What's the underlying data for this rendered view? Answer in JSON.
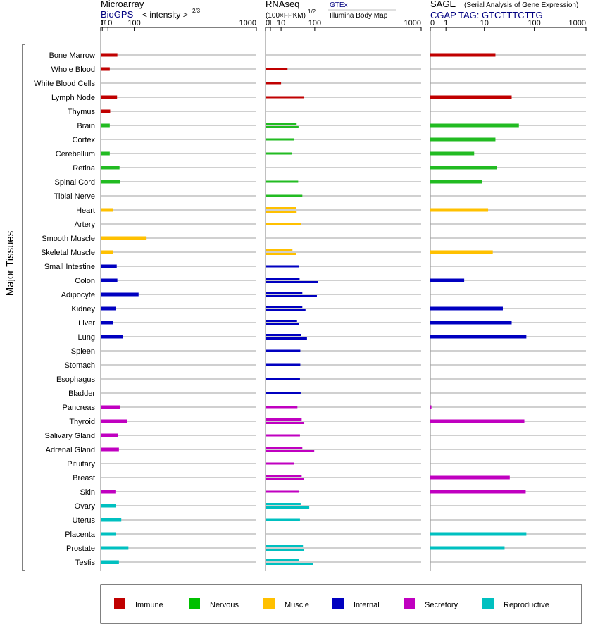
{
  "chart_data": [
    {
      "type": "bar",
      "title": "Microarray",
      "subtitle": "BioGPS",
      "scale_label": "< intensity >",
      "scale_exponent": "2/3",
      "scale": "power-2/3",
      "ticks": [
        "0",
        "1",
        "10",
        "100",
        "1000"
      ],
      "xlim": [
        0,
        1000
      ],
      "series": [
        {
          "tissue": "Bone Marrow",
          "group": "Immune",
          "values": [
            35
          ]
        },
        {
          "tissue": "Whole Blood",
          "group": "Immune",
          "values": [
            14
          ]
        },
        {
          "tissue": "White Blood Cells",
          "group": "Immune",
          "values": []
        },
        {
          "tissue": "Lymph Node",
          "group": "Immune",
          "values": [
            34
          ]
        },
        {
          "tissue": "Thymus",
          "group": "Immune",
          "values": [
            15
          ]
        },
        {
          "tissue": "Brain",
          "group": "Nervous",
          "values": [
            14
          ]
        },
        {
          "tissue": "Cortex",
          "group": "Nervous",
          "values": []
        },
        {
          "tissue": "Cerebellum",
          "group": "Nervous",
          "values": [
            14
          ]
        },
        {
          "tissue": "Retina",
          "group": "Nervous",
          "values": [
            42
          ]
        },
        {
          "tissue": "Spinal Cord",
          "group": "Nervous",
          "values": [
            45
          ]
        },
        {
          "tissue": "Tibial Nerve",
          "group": "Nervous",
          "values": []
        },
        {
          "tissue": "Heart",
          "group": "Muscle",
          "values": [
            22
          ]
        },
        {
          "tissue": "Artery",
          "group": "Muscle",
          "values": []
        },
        {
          "tissue": "Smooth Muscle",
          "group": "Muscle",
          "values": [
            160
          ]
        },
        {
          "tissue": "Skeletal Muscle",
          "group": "Muscle",
          "values": [
            23
          ]
        },
        {
          "tissue": "Small Intestine",
          "group": "Internal",
          "values": [
            33
          ]
        },
        {
          "tissue": "Colon",
          "group": "Internal",
          "values": [
            35
          ]
        },
        {
          "tissue": "Adipocyte",
          "group": "Internal",
          "values": [
            120
          ]
        },
        {
          "tissue": "Kidney",
          "group": "Internal",
          "values": [
            30
          ]
        },
        {
          "tissue": "Liver",
          "group": "Internal",
          "values": [
            23
          ]
        },
        {
          "tissue": "Lung",
          "group": "Internal",
          "values": [
            55
          ]
        },
        {
          "tissue": "Spleen",
          "group": "Internal",
          "values": []
        },
        {
          "tissue": "Stomach",
          "group": "Internal",
          "values": []
        },
        {
          "tissue": "Esophagus",
          "group": "Internal",
          "values": []
        },
        {
          "tissue": "Bladder",
          "group": "Internal",
          "values": []
        },
        {
          "tissue": "Pancreas",
          "group": "Secretory",
          "values": [
            45
          ]
        },
        {
          "tissue": "Thyroid",
          "group": "Secretory",
          "values": [
            70
          ]
        },
        {
          "tissue": "Salivary Gland",
          "group": "Secretory",
          "values": [
            37
          ]
        },
        {
          "tissue": "Adrenal Gland",
          "group": "Secretory",
          "values": [
            40
          ]
        },
        {
          "tissue": "Pituitary",
          "group": "Secretory",
          "values": []
        },
        {
          "tissue": "Breast",
          "group": "Secretory",
          "values": []
        },
        {
          "tissue": "Skin",
          "group": "Secretory",
          "values": [
            29
          ]
        },
        {
          "tissue": "Ovary",
          "group": "Reproductive",
          "values": [
            31
          ]
        },
        {
          "tissue": "Uterus",
          "group": "Reproductive",
          "values": [
            48
          ]
        },
        {
          "tissue": "Placenta",
          "group": "Reproductive",
          "values": [
            31
          ]
        },
        {
          "tissue": "Prostate",
          "group": "Reproductive",
          "values": [
            75
          ]
        },
        {
          "tissue": "Testis",
          "group": "Reproductive",
          "values": [
            40
          ]
        }
      ]
    },
    {
      "type": "bar",
      "title": "RNAseq",
      "scale_label": "(100×FPKM)",
      "scale_exponent": "1/2",
      "source_top": "GTEx",
      "source_bottom": "Illumina Body Map",
      "scale": "power-1/2",
      "ticks": [
        "0",
        "1",
        "10",
        "100",
        "1000"
      ],
      "xlim": [
        0,
        1000
      ],
      "series": [
        {
          "tissue": "Bone Marrow",
          "group": "Immune",
          "values": []
        },
        {
          "tissue": "Whole Blood",
          "group": "Immune",
          "values": [
            20
          ]
        },
        {
          "tissue": "White Blood Cells",
          "group": "Immune",
          "values": [
            10
          ]
        },
        {
          "tissue": "Lymph Node",
          "group": "Immune",
          "values": [
            60
          ]
        },
        {
          "tissue": "Thymus",
          "group": "Immune",
          "values": []
        },
        {
          "tissue": "Brain",
          "group": "Nervous",
          "values": [
            40,
            45
          ]
        },
        {
          "tissue": "Cortex",
          "group": "Nervous",
          "values": [
            33
          ]
        },
        {
          "tissue": "Cerebellum",
          "group": "Nervous",
          "values": [
            28
          ]
        },
        {
          "tissue": "Retina",
          "group": "Nervous",
          "values": []
        },
        {
          "tissue": "Spinal Cord",
          "group": "Nervous",
          "values": [
            44
          ]
        },
        {
          "tissue": "Tibial Nerve",
          "group": "Nervous",
          "values": [
            56
          ]
        },
        {
          "tissue": "Heart",
          "group": "Muscle",
          "values": [
            38,
            40
          ]
        },
        {
          "tissue": "Artery",
          "group": "Muscle",
          "values": [
            52
          ]
        },
        {
          "tissue": "Smooth Muscle",
          "group": "Muscle",
          "values": []
        },
        {
          "tissue": "Skeletal Muscle",
          "group": "Muscle",
          "values": [
            30,
            39
          ]
        },
        {
          "tissue": "Small Intestine",
          "group": "Internal",
          "values": [
            47
          ]
        },
        {
          "tissue": "Colon",
          "group": "Internal",
          "values": [
            48,
            115
          ]
        },
        {
          "tissue": "Adipocyte",
          "group": "Internal",
          "values": [
            56,
            109
          ]
        },
        {
          "tissue": "Kidney",
          "group": "Internal",
          "values": [
            56,
            66
          ]
        },
        {
          "tissue": "Liver",
          "group": "Internal",
          "values": [
            41,
            47
          ]
        },
        {
          "tissue": "Lung",
          "group": "Internal",
          "values": [
            53,
            71
          ]
        },
        {
          "tissue": "Spleen",
          "group": "Internal",
          "values": [
            50
          ]
        },
        {
          "tissue": "Stomach",
          "group": "Internal",
          "values": [
            50
          ]
        },
        {
          "tissue": "Esophagus",
          "group": "Internal",
          "values": [
            49
          ]
        },
        {
          "tissue": "Bladder",
          "group": "Internal",
          "values": [
            51
          ]
        },
        {
          "tissue": "Pancreas",
          "group": "Secretory",
          "values": [
            42
          ]
        },
        {
          "tissue": "Thyroid",
          "group": "Secretory",
          "values": [
            54,
            62
          ]
        },
        {
          "tissue": "Salivary Gland",
          "group": "Secretory",
          "values": [
            49
          ]
        },
        {
          "tissue": "Adrenal Gland",
          "group": "Secretory",
          "values": [
            56,
            98
          ]
        },
        {
          "tissue": "Pituitary",
          "group": "Secretory",
          "values": [
            34
          ]
        },
        {
          "tissue": "Breast",
          "group": "Secretory",
          "values": [
            54,
            61
          ]
        },
        {
          "tissue": "Skin",
          "group": "Secretory",
          "values": [
            47
          ]
        },
        {
          "tissue": "Ovary",
          "group": "Reproductive",
          "values": [
            51,
            79
          ]
        },
        {
          "tissue": "Uterus",
          "group": "Reproductive",
          "values": [
            49
          ]
        },
        {
          "tissue": "Placenta",
          "group": "Reproductive",
          "values": []
        },
        {
          "tissue": "Prostate",
          "group": "Reproductive",
          "values": [
            58,
            62
          ]
        },
        {
          "tissue": "Testis",
          "group": "Reproductive",
          "values": [
            47,
            94
          ]
        }
      ]
    },
    {
      "type": "bar",
      "title": "SAGE",
      "subtitle_note": "(Serial Analysis of Gene Expression)",
      "tag_line": "CGAP  TAG: GTCTTTCTTG",
      "scale": "log",
      "ticks": [
        "0",
        "1",
        "10",
        "100",
        "1000"
      ],
      "xlim": [
        0,
        1000
      ],
      "series": [
        {
          "tissue": "Bone Marrow",
          "group": "Immune",
          "values": [
            17
          ]
        },
        {
          "tissue": "Whole Blood",
          "group": "Immune",
          "values": []
        },
        {
          "tissue": "White Blood Cells",
          "group": "Immune",
          "values": []
        },
        {
          "tissue": "Lymph Node",
          "group": "Immune",
          "values": [
            36
          ]
        },
        {
          "tissue": "Thymus",
          "group": "Immune",
          "values": []
        },
        {
          "tissue": "Brain",
          "group": "Nervous",
          "values": [
            50
          ]
        },
        {
          "tissue": "Cortex",
          "group": "Nervous",
          "values": [
            17
          ]
        },
        {
          "tissue": "Cerebellum",
          "group": "Nervous",
          "values": [
            6
          ]
        },
        {
          "tissue": "Retina",
          "group": "Nervous",
          "values": [
            18
          ]
        },
        {
          "tissue": "Spinal Cord",
          "group": "Nervous",
          "values": [
            9
          ]
        },
        {
          "tissue": "Tibial Nerve",
          "group": "Nervous",
          "values": []
        },
        {
          "tissue": "Heart",
          "group": "Muscle",
          "values": [
            12
          ]
        },
        {
          "tissue": "Artery",
          "group": "Muscle",
          "values": []
        },
        {
          "tissue": "Smooth Muscle",
          "group": "Muscle",
          "values": []
        },
        {
          "tissue": "Skeletal Muscle",
          "group": "Muscle",
          "values": [
            15
          ]
        },
        {
          "tissue": "Small Intestine",
          "group": "Internal",
          "values": []
        },
        {
          "tissue": "Colon",
          "group": "Internal",
          "values": [
            3.5
          ]
        },
        {
          "tissue": "Adipocyte",
          "group": "Internal",
          "values": []
        },
        {
          "tissue": "Kidney",
          "group": "Internal",
          "values": [
            24
          ]
        },
        {
          "tissue": "Liver",
          "group": "Internal",
          "values": [
            36
          ]
        },
        {
          "tissue": "Lung",
          "group": "Internal",
          "values": [
            70
          ]
        },
        {
          "tissue": "Spleen",
          "group": "Internal",
          "values": []
        },
        {
          "tissue": "Stomach",
          "group": "Internal",
          "values": []
        },
        {
          "tissue": "Esophagus",
          "group": "Internal",
          "values": []
        },
        {
          "tissue": "Bladder",
          "group": "Internal",
          "values": []
        },
        {
          "tissue": "Pancreas",
          "group": "Secretory",
          "values": [
            0.05
          ]
        },
        {
          "tissue": "Thyroid",
          "group": "Secretory",
          "values": [
            64
          ]
        },
        {
          "tissue": "Salivary Gland",
          "group": "Secretory",
          "values": []
        },
        {
          "tissue": "Adrenal Gland",
          "group": "Secretory",
          "values": []
        },
        {
          "tissue": "Pituitary",
          "group": "Secretory",
          "values": []
        },
        {
          "tissue": "Breast",
          "group": "Secretory",
          "values": [
            33
          ]
        },
        {
          "tissue": "Skin",
          "group": "Secretory",
          "values": [
            68
          ]
        },
        {
          "tissue": "Ovary",
          "group": "Reproductive",
          "values": []
        },
        {
          "tissue": "Uterus",
          "group": "Reproductive",
          "values": []
        },
        {
          "tissue": "Placenta",
          "group": "Reproductive",
          "values": [
            70
          ]
        },
        {
          "tissue": "Prostate",
          "group": "Reproductive",
          "values": [
            26
          ]
        },
        {
          "tissue": "Testis",
          "group": "Reproductive",
          "values": []
        }
      ]
    }
  ],
  "tissues": [
    "Bone Marrow",
    "Whole Blood",
    "White Blood Cells",
    "Lymph Node",
    "Thymus",
    "Brain",
    "Cortex",
    "Cerebellum",
    "Retina",
    "Spinal Cord",
    "Tibial Nerve",
    "Heart",
    "Artery",
    "Smooth Muscle",
    "Skeletal Muscle",
    "Small Intestine",
    "Colon",
    "Adipocyte",
    "Kidney",
    "Liver",
    "Lung",
    "Spleen",
    "Stomach",
    "Esophagus",
    "Bladder",
    "Pancreas",
    "Thyroid",
    "Salivary Gland",
    "Adrenal Gland",
    "Pituitary",
    "Breast",
    "Skin",
    "Ovary",
    "Uterus",
    "Placenta",
    "Prostate",
    "Testis"
  ],
  "group_label": "Major Tissues",
  "legend": [
    {
      "label": "Immune",
      "color": "#c00000"
    },
    {
      "label": "Nervous",
      "color": "#00c000"
    },
    {
      "label": "Muscle",
      "color": "#ffc000"
    },
    {
      "label": "Internal",
      "color": "#0000c0"
    },
    {
      "label": "Secretory",
      "color": "#c000c0"
    },
    {
      "label": "Reproductive",
      "color": "#00c0c0"
    }
  ],
  "colors": {
    "Immune": "#c00000",
    "Nervous": "#22bb22",
    "Muscle": "#ffc000",
    "Internal": "#0000c0",
    "Secretory": "#c000c0",
    "Reproductive": "#00c0c0",
    "link": "#000080"
  }
}
